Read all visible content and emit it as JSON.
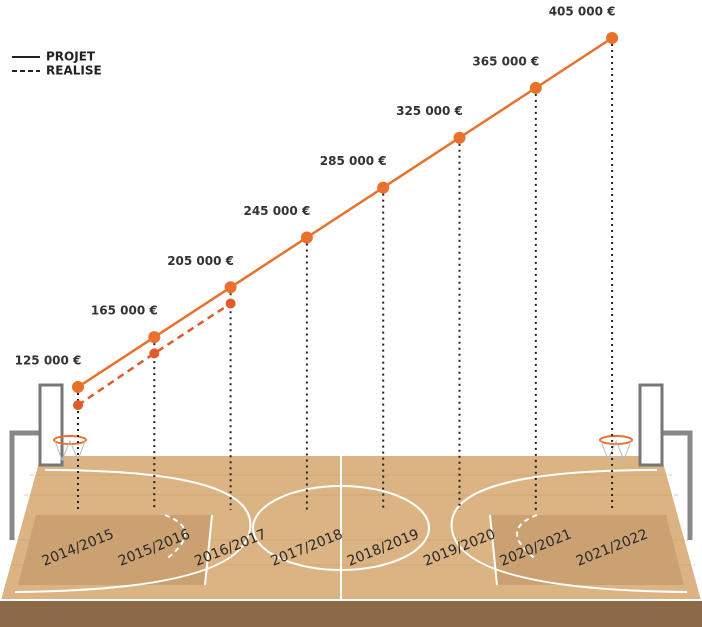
{
  "chart_data": {
    "type": "line",
    "categories": [
      "2014/2015",
      "2015/2016",
      "2016/2017",
      "2017/2018",
      "2018/2019",
      "2019/2020",
      "2020/2021",
      "2021/2022"
    ],
    "series": [
      {
        "name": "PROJET",
        "color": "#e8712e",
        "dashed": false,
        "values": [
          125000,
          165000,
          205000,
          245000,
          285000,
          325000,
          365000,
          405000
        ],
        "value_labels": [
          "125 000 €",
          "165 000 €",
          "205 000 €",
          "245 000 €",
          "285 000 €",
          "325 000 €",
          "365 000 €",
          "405 000 €"
        ]
      },
      {
        "name": "REALISE",
        "color": "#e05a2a",
        "dashed": true,
        "values": [
          110500,
          152000,
          192000,
          null,
          null,
          null,
          null,
          null
        ]
      }
    ],
    "ylim": [
      100000,
      420000
    ],
    "legend": "top-left"
  }
}
